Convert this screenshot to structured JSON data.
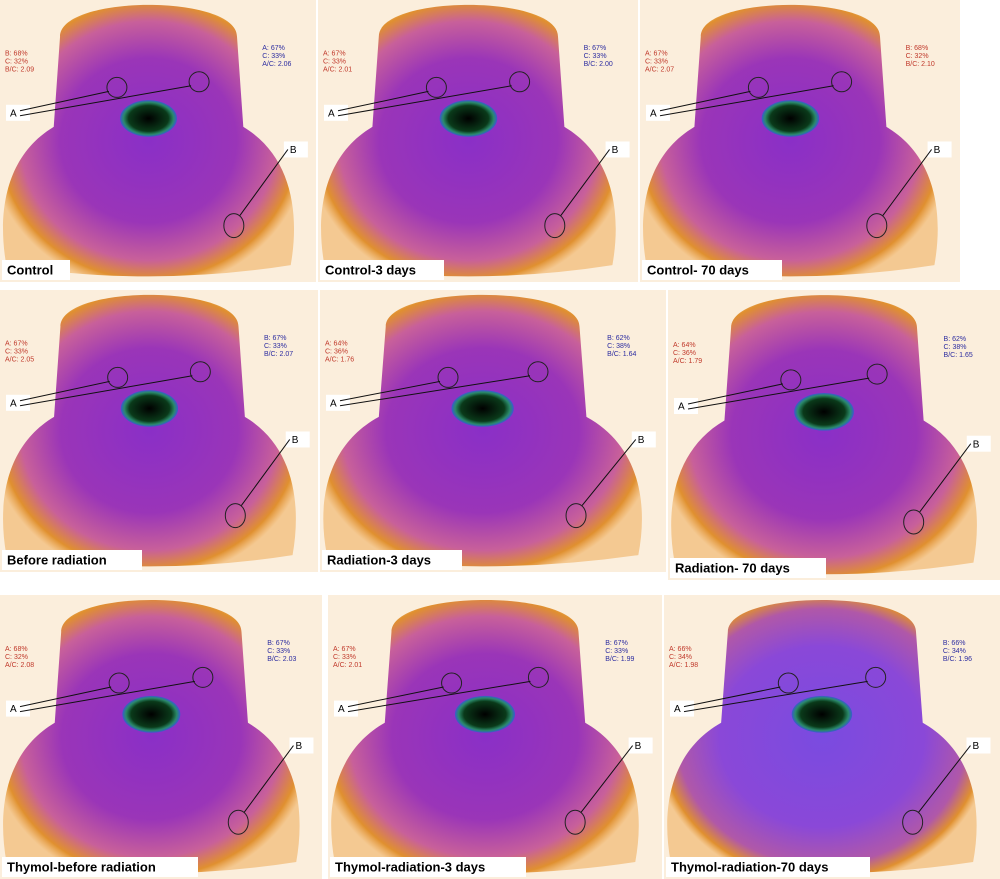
{
  "panels": [
    {
      "label": "Control",
      "left": {
        "color": "#c0392b",
        "lines": [
          "B: 68%",
          "C: 32%",
          "B/C: 2.09"
        ]
      },
      "right": {
        "color": "#2c2ca0",
        "lines": [
          "A: 67%",
          "C: 33%",
          "A/C: 2.06"
        ]
      },
      "region_a": "A",
      "region_b": "B"
    },
    {
      "label": "Control-3 days",
      "left": {
        "color": "#c0392b",
        "lines": [
          "A: 67%",
          "C: 33%",
          "A/C: 2.01"
        ]
      },
      "right": {
        "color": "#2c2ca0",
        "lines": [
          "B: 67%",
          "C: 33%",
          "B/C: 2.00"
        ]
      },
      "region_a": "A",
      "region_b": "B"
    },
    {
      "label": "Control- 70 days",
      "left": {
        "color": "#c0392b",
        "lines": [
          "A: 67%",
          "C: 33%",
          "A/C: 2.07"
        ]
      },
      "right": {
        "color": "#c0392b",
        "lines": [
          "B: 68%",
          "C: 32%",
          "B/C: 2.10"
        ]
      },
      "region_a": "A",
      "region_b": "B"
    },
    {
      "label": "Before radiation",
      "left": {
        "color": "#c0392b",
        "lines": [
          "A: 67%",
          "C: 33%",
          "A/C: 2.05"
        ]
      },
      "right": {
        "color": "#2c2ca0",
        "lines": [
          "B: 67%",
          "C: 33%",
          "B/C: 2.07"
        ]
      },
      "region_a": "A",
      "region_b": "B"
    },
    {
      "label": "Radiation-3 days",
      "left": {
        "color": "#c0392b",
        "lines": [
          "A: 64%",
          "C: 36%",
          "A/C: 1.76"
        ]
      },
      "right": {
        "color": "#2c2ca0",
        "lines": [
          "B: 62%",
          "C: 38%",
          "B/C: 1.64"
        ]
      },
      "region_a": "A",
      "region_b": "B"
    },
    {
      "label": "Radiation- 70 days",
      "left": {
        "color": "#c0392b",
        "lines": [
          "A: 64%",
          "C: 36%",
          "A/C: 1.79"
        ]
      },
      "right": {
        "color": "#2c2ca0",
        "lines": [
          "B: 62%",
          "C: 38%",
          "B/C: 1.65"
        ]
      },
      "region_a": "A",
      "region_b": "B"
    },
    {
      "label": "Thymol-before radiation",
      "left": {
        "color": "#c0392b",
        "lines": [
          "A: 68%",
          "C: 32%",
          "A/C: 2.08"
        ]
      },
      "right": {
        "color": "#2c2ca0",
        "lines": [
          "B: 67%",
          "C: 33%",
          "B/C: 2.03"
        ]
      },
      "region_a": "A",
      "region_b": "B"
    },
    {
      "label": "Thymol-radiation-3 days",
      "left": {
        "color": "#c0392b",
        "lines": [
          "A: 67%",
          "C: 33%",
          "A/C: 2.01"
        ]
      },
      "right": {
        "color": "#2c2ca0",
        "lines": [
          "B: 67%",
          "C: 33%",
          "B/C: 1.99"
        ]
      },
      "region_a": "A",
      "region_b": "B"
    },
    {
      "label": "Thymol-radiation-70 days",
      "left": {
        "color": "#c0392b",
        "lines": [
          "A: 66%",
          "C: 34%",
          "A/C: 1.98"
        ]
      },
      "right": {
        "color": "#2c2ca0",
        "lines": [
          "B: 66%",
          "C: 34%",
          "B/C: 1.96"
        ]
      },
      "region_a": "A",
      "region_b": "B"
    }
  ]
}
